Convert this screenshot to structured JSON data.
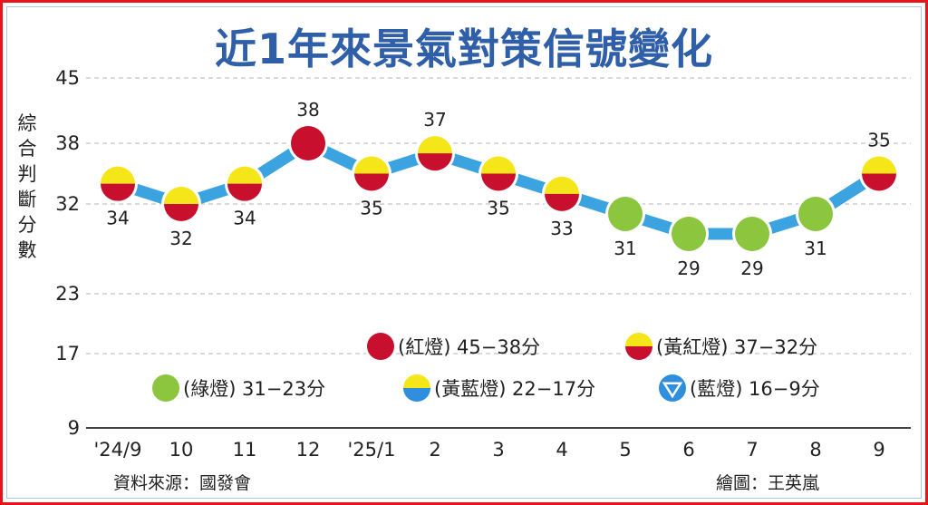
{
  "chart_data": {
    "type": "line",
    "title": "近1年來景氣對策信號變化",
    "ylabel": "綜合判斷分數",
    "xlabel": "",
    "categories": [
      "'24/9",
      "10",
      "11",
      "12",
      "'25/1",
      "2",
      "3",
      "4",
      "5",
      "6",
      "7",
      "8",
      "9"
    ],
    "values": [
      34,
      32,
      34,
      38,
      35,
      37,
      35,
      33,
      31,
      29,
      29,
      31,
      35
    ],
    "y_ticks": [
      45,
      38,
      32,
      23,
      17,
      9
    ],
    "ylim": [
      9,
      45
    ],
    "grid": true,
    "line_color": "#3ba3e0",
    "legend_placement": "bottom-right",
    "legend": [
      {
        "label": "(紅燈) 45−38分",
        "signal": "red"
      },
      {
        "label": "(黃紅燈) 37−32分",
        "signal": "yellow-red"
      },
      {
        "label": "(綠燈) 31−23分",
        "signal": "green"
      },
      {
        "label": "(黃藍燈) 22−17分",
        "signal": "yellow-blue"
      },
      {
        "label": "(藍燈) 16−9分",
        "signal": "blue"
      }
    ],
    "colors": {
      "red": "#c8102e",
      "yellow": "#f5e61a",
      "green": "#8cc63f",
      "blue": "#2f8fdc"
    }
  },
  "footer": {
    "source": "資料來源：國發會",
    "credit": "繪圖：王英嵐"
  }
}
